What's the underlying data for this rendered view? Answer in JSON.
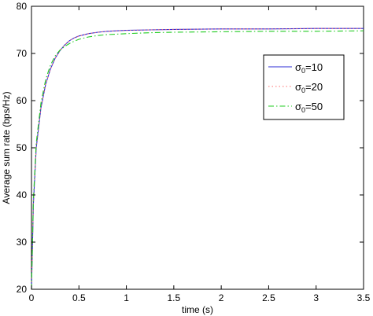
{
  "chart_data": {
    "type": "line",
    "xlabel": "time (s)",
    "ylabel": "Average sum rate (bps/Hz)",
    "xlim": [
      0,
      3.5
    ],
    "ylim": [
      20,
      80
    ],
    "xticks": [
      0,
      0.5,
      1,
      1.5,
      2,
      2.5,
      3,
      3.5
    ],
    "xtick_labels": [
      "0",
      "0.5",
      "1",
      "1.5",
      "2",
      "2.5",
      "3",
      "3.5"
    ],
    "yticks": [
      20,
      30,
      40,
      50,
      60,
      70,
      80
    ],
    "ytick_labels": [
      "20",
      "30",
      "40",
      "50",
      "60",
      "70",
      "80"
    ],
    "grid": false,
    "legend_position": "right-upper",
    "x": [
      0,
      0.02,
      0.05,
      0.1,
      0.15,
      0.2,
      0.25,
      0.3,
      0.35,
      0.4,
      0.45,
      0.5,
      0.6,
      0.7,
      0.8,
      1.0,
      1.25,
      1.5,
      2.0,
      2.5,
      3.0,
      3.5
    ],
    "series": [
      {
        "name": "σ0=10",
        "legend_base": "σ",
        "legend_sub": "0",
        "legend_rest": "=10",
        "color": "#2b2bd6",
        "dash": "",
        "values": [
          20,
          38,
          50,
          58.5,
          63.5,
          66.7,
          69.0,
          70.6,
          71.8,
          72.7,
          73.3,
          73.7,
          74.2,
          74.5,
          74.7,
          74.9,
          75.0,
          75.1,
          75.2,
          75.2,
          75.3,
          75.3
        ]
      },
      {
        "name": "σ0=20",
        "legend_base": "σ",
        "legend_sub": "0",
        "legend_rest": "=20",
        "color": "#ff6b6b",
        "dash": "1.5,3",
        "values": [
          20,
          38,
          50,
          58.5,
          63.5,
          66.7,
          69.0,
          70.6,
          71.8,
          72.7,
          73.3,
          73.7,
          74.2,
          74.5,
          74.7,
          74.9,
          75.0,
          75.1,
          75.2,
          75.2,
          75.3,
          75.3
        ]
      },
      {
        "name": "σ0=50",
        "legend_base": "σ",
        "legend_sub": "0",
        "legend_rest": "=50",
        "color": "#22cc22",
        "dash": "7,3,1.5,3",
        "values": [
          20,
          39,
          51,
          59.5,
          64.5,
          67.5,
          69.5,
          70.7,
          71.5,
          72.1,
          72.6,
          73.0,
          73.5,
          73.8,
          74.0,
          74.2,
          74.4,
          74.5,
          74.6,
          74.7,
          74.7,
          74.8
        ]
      }
    ]
  }
}
